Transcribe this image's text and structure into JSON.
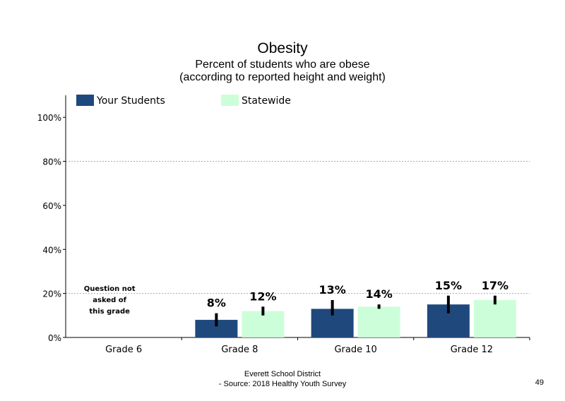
{
  "chart_data": {
    "type": "bar",
    "title": "Obesity",
    "subtitle": [
      "Percent of students who are obese",
      "(according to reported height and weight)"
    ],
    "categories": [
      "Grade 6",
      "Grade 8",
      "Grade 10",
      "Grade 12"
    ],
    "series": [
      {
        "name": "Your Students",
        "color": "#1f497d",
        "values": [
          null,
          8,
          13,
          15
        ],
        "labels": [
          "",
          "8%",
          "13%",
          "15%"
        ],
        "error_low": [
          null,
          5,
          10,
          11
        ],
        "error_high": [
          null,
          11,
          17,
          19
        ]
      },
      {
        "name": "Statewide",
        "color": "#ccffd9",
        "values": [
          null,
          12,
          14,
          17
        ],
        "labels": [
          "",
          "12%",
          "14%",
          "17%"
        ],
        "error_low": [
          null,
          10,
          13,
          15
        ],
        "error_high": [
          null,
          14,
          15,
          19
        ]
      }
    ],
    "ylim": [
      0,
      110
    ],
    "yticks": [
      "0%",
      "20%",
      "40%",
      "60%",
      "80%",
      "100%"
    ],
    "ytick_values": [
      0,
      20,
      40,
      60,
      80,
      100
    ],
    "gridlines": [
      20,
      80
    ],
    "note": "Question not asked of this grade",
    "legend_position": "top"
  },
  "footer": {
    "line1": "Everett School District",
    "line2": "- Source: 2018 Healthy  Youth Survey",
    "page_number": "49"
  }
}
